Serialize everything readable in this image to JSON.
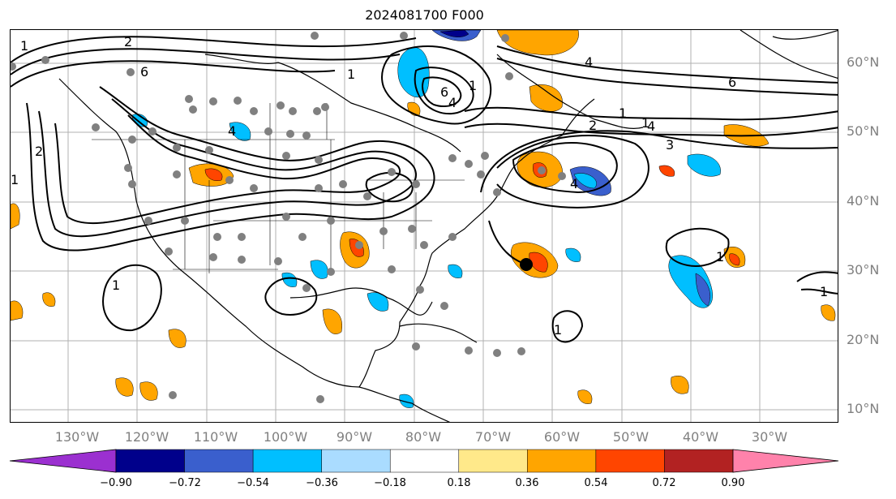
{
  "title": "2024081700 F000",
  "lat_labels": [
    "60°N",
    "50°N",
    "40°N",
    "30°N",
    "20°N",
    "10°N"
  ],
  "lon_labels": [
    "130°W",
    "120°W",
    "110°W",
    "100°W",
    "90°W",
    "80°W",
    "70°W",
    "60°W",
    "50°W",
    "40°W",
    "30°W"
  ],
  "contour_labels": [
    "6",
    "4",
    "2",
    "1",
    "4",
    "6",
    "1",
    "1",
    "4",
    "1",
    "2",
    "3",
    "1",
    "4",
    "6",
    "2",
    "4",
    "1",
    "1",
    "1",
    "1",
    "1"
  ],
  "colorbar": {
    "ticks": [
      "−0.90",
      "−0.72",
      "−0.54",
      "−0.36",
      "−0.18",
      "0.18",
      "0.36",
      "0.54",
      "0.72",
      "0.90"
    ],
    "colors": [
      "#9b30d0",
      "#00008b",
      "#3a5fcd",
      "#00bfff",
      "#aadcff",
      "#ffffff",
      "#ffe98a",
      "#ffa500",
      "#ff4500",
      "#b22222",
      "#ff82ab"
    ]
  },
  "marker_color": "#000000",
  "station_color": "#808080"
}
